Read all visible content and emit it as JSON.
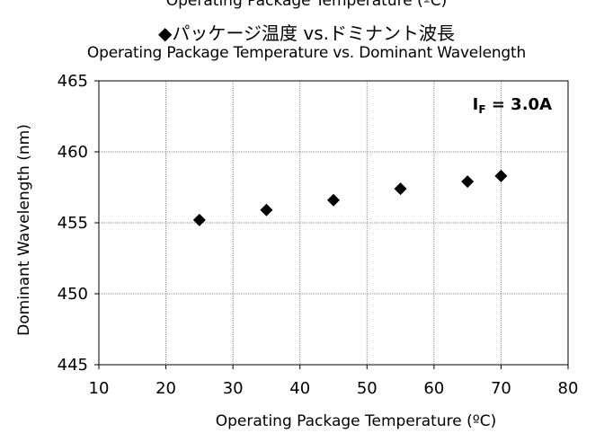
{
  "header": {
    "top_fragment": "Operating Package Temperature (ºC)",
    "title_jp": "◆パッケージ温度 vs.ドミナント波長",
    "title_en": "Operating Package Temperature  vs. Dominant Wavelength"
  },
  "annotation": {
    "main": "I",
    "sub": "F",
    "rest": " = 3.0A"
  },
  "chart_data": {
    "type": "scatter",
    "title": "◆パッケージ温度 vs.ドミナント波長",
    "subtitle": "Operating Package Temperature  vs. Dominant Wavelength",
    "xlabel": "Operating Package Temperature (ºC)",
    "ylabel": "Dominant Wavelength (nm)",
    "xlim": [
      10,
      80
    ],
    "ylim": [
      445,
      465
    ],
    "xticks": [
      10,
      20,
      30,
      40,
      50,
      60,
      70,
      80
    ],
    "yticks": [
      445,
      450,
      455,
      460,
      465
    ],
    "grid": true,
    "marker": "diamond",
    "series": [
      {
        "color": "#000000",
        "x": [
          25,
          35,
          45,
          55,
          65,
          70
        ],
        "y": [
          455.2,
          455.9,
          456.6,
          457.4,
          457.9,
          458.3
        ]
      }
    ]
  }
}
